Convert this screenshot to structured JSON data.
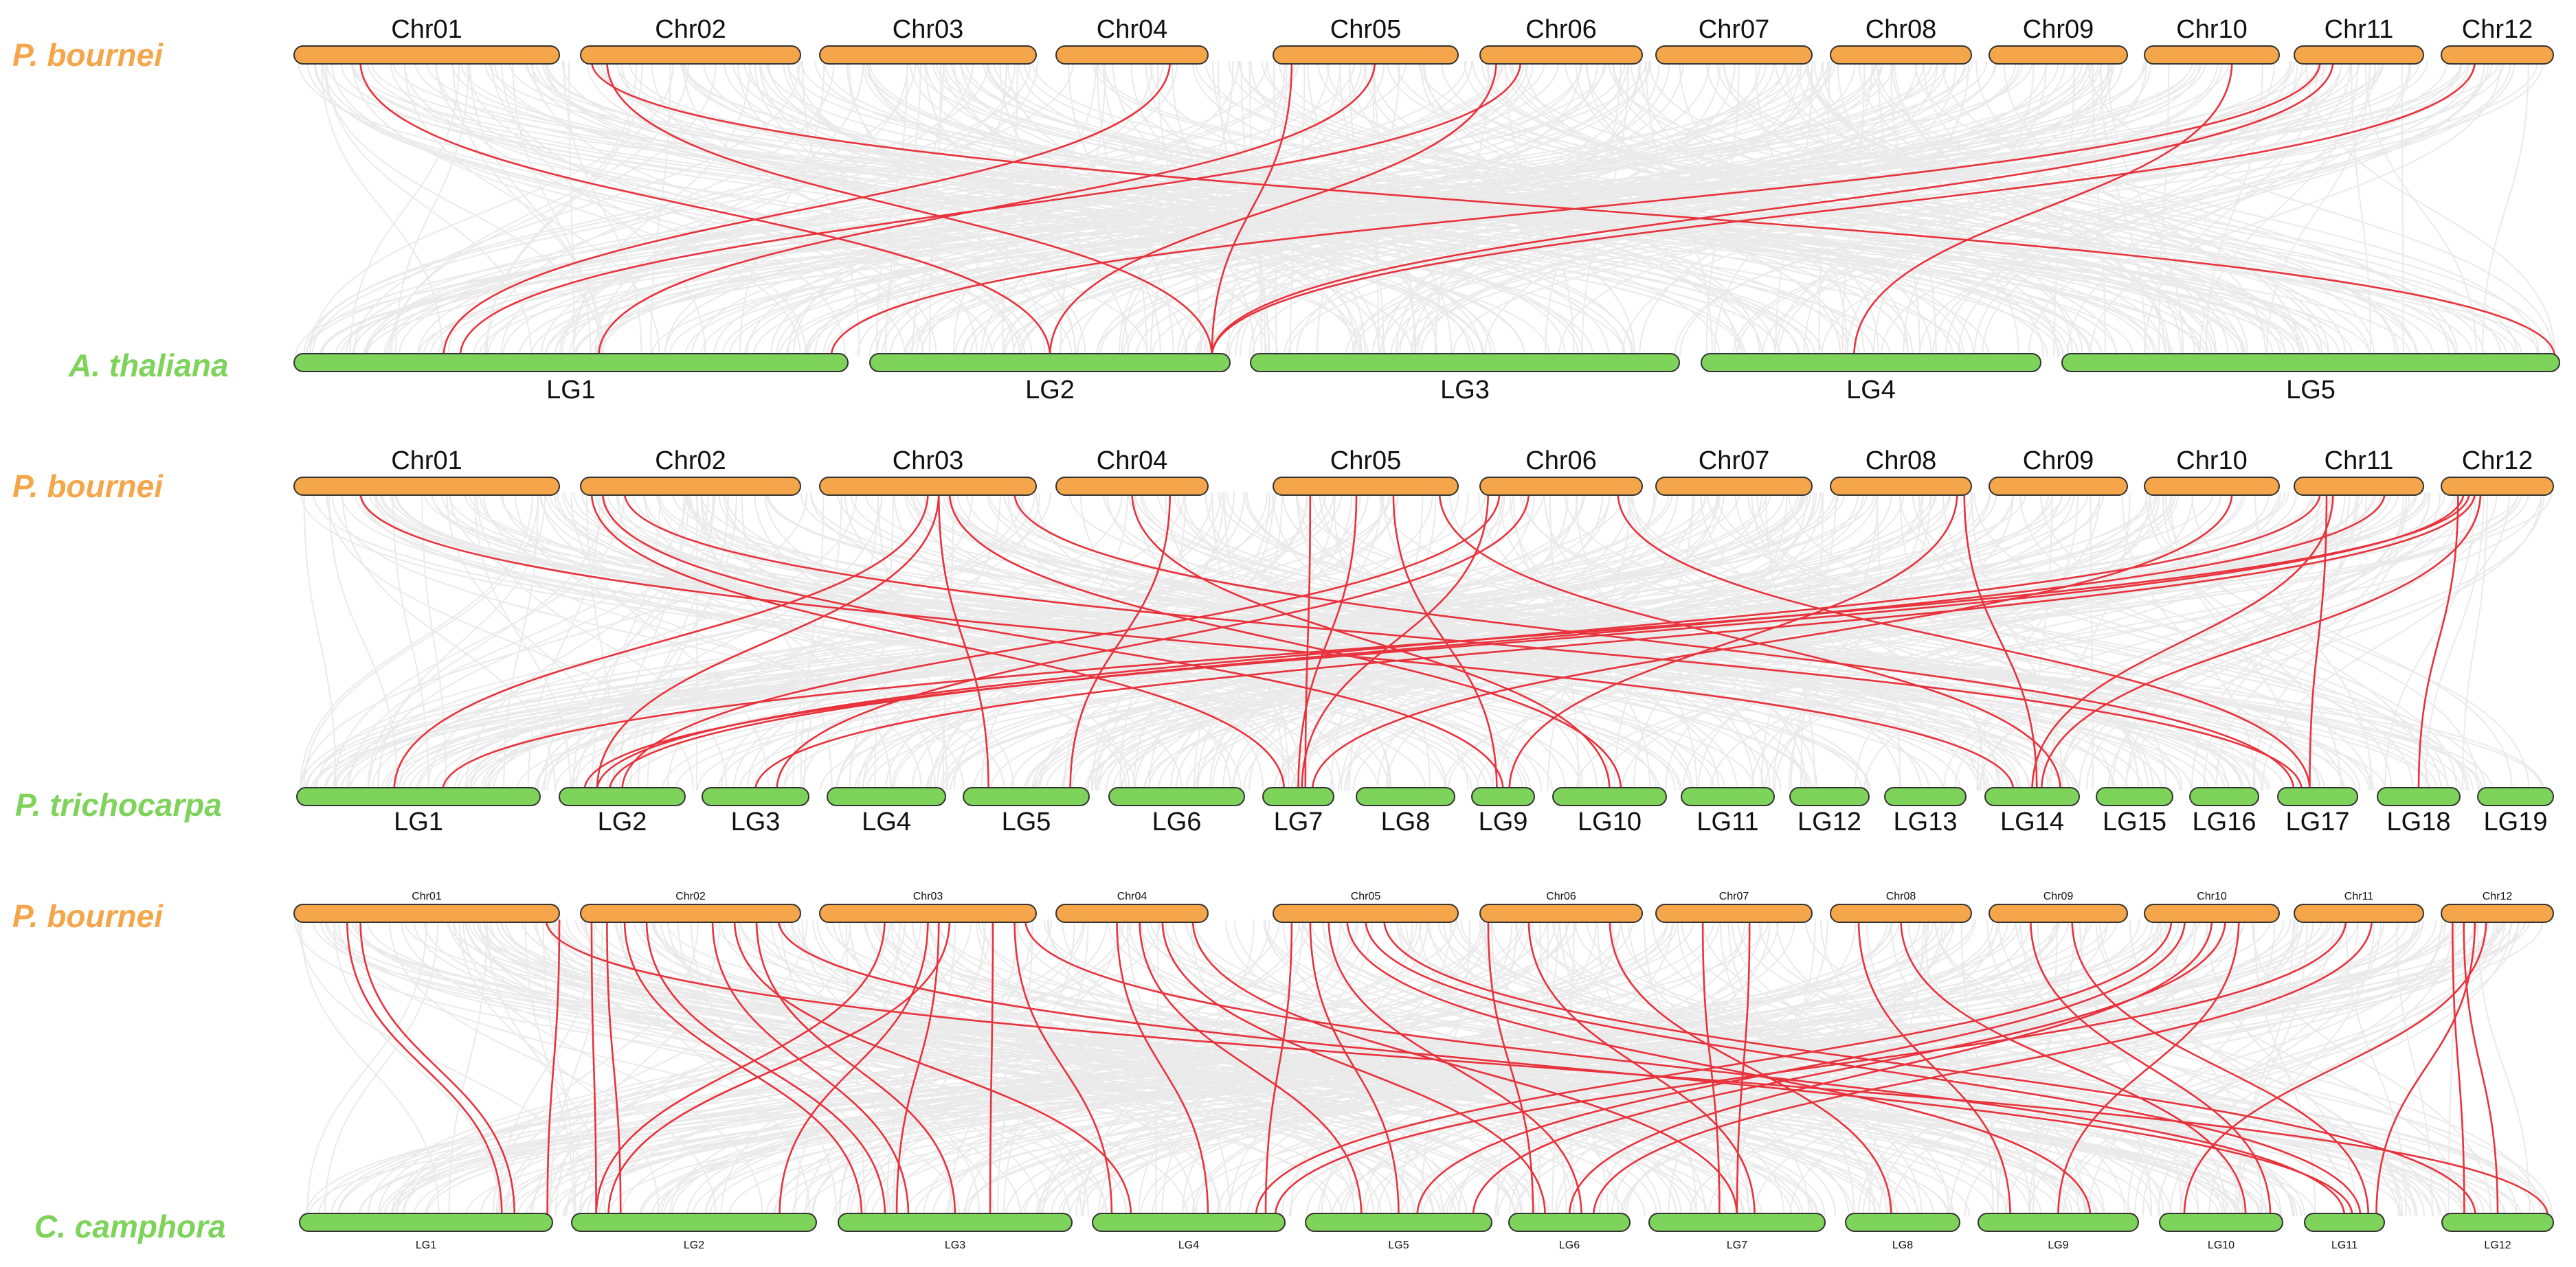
{
  "colors": {
    "top_chrom": "#f5a54a",
    "bottom_chrom": "#7ed35a",
    "top_species": "#f5a54a",
    "bottom_species": "#7ed35a",
    "background_link": "#e6e6e6",
    "synteny_link": "#e8323c",
    "outline": "#333333"
  },
  "panels": [
    {
      "top_species": "P.  bournei",
      "bottom_species": "A.  thaliana",
      "top_chroms": [
        "Chr01",
        "Chr02",
        "Chr03",
        "Chr04",
        "Chr05",
        "Chr06",
        "Chr07",
        "Chr08",
        "Chr09",
        "Chr10",
        "Chr11",
        "Chr12"
      ],
      "bottom_chroms": [
        "LG1",
        "LG2",
        "LG3",
        "LG4",
        "LG5"
      ],
      "links": [
        [
          "Chr01",
          0.25,
          "LG2",
          0.5
        ],
        [
          "Chr02",
          0.05,
          "LG5",
          0.99
        ],
        [
          "Chr02",
          0.12,
          "LG2",
          0.95
        ],
        [
          "Chr04",
          0.75,
          "LG1",
          0.27
        ],
        [
          "Chr05",
          0.1,
          "LG2",
          0.95
        ],
        [
          "Chr05",
          0.55,
          "LG1",
          0.55
        ],
        [
          "Chr06",
          0.1,
          "LG2",
          0.5
        ],
        [
          "Chr06",
          0.25,
          "LG1",
          0.3
        ],
        [
          "Chr10",
          0.65,
          "LG4",
          0.45
        ],
        [
          "Chr11",
          0.2,
          "LG1",
          0.97
        ],
        [
          "Chr11",
          0.3,
          "LG2",
          0.95
        ],
        [
          "Chr12",
          0.3,
          "LG2",
          0.95
        ]
      ]
    },
    {
      "top_species": "P.  bournei",
      "bottom_species": "P.  trichocarpa",
      "top_chroms": [
        "Chr01",
        "Chr02",
        "Chr03",
        "Chr04",
        "Chr05",
        "Chr06",
        "Chr07",
        "Chr08",
        "Chr09",
        "Chr10",
        "Chr11",
        "Chr12"
      ],
      "bottom_chroms": [
        "LG1",
        "LG2",
        "LG3",
        "LG4",
        "LG5",
        "LG6",
        "LG7",
        "LG8",
        "LG9",
        "LG10",
        "LG11",
        "LG12",
        "LG13",
        "LG14",
        "LG15",
        "LG16",
        "LG17",
        "LG18",
        "LG19"
      ],
      "links": [
        [
          "Chr01",
          0.25,
          "LG14",
          0.3
        ],
        [
          "Chr02",
          0.05,
          "LG7",
          0.3
        ],
        [
          "Chr02",
          0.1,
          "LG9",
          0.5
        ],
        [
          "Chr02",
          0.2,
          "LG17",
          0.3
        ],
        [
          "Chr03",
          0.55,
          "LG2",
          0.3
        ],
        [
          "Chr03",
          0.55,
          "LG5",
          0.2
        ],
        [
          "Chr03",
          0.5,
          "LG1",
          0.4
        ],
        [
          "Chr03",
          0.6,
          "LG10",
          0.6
        ],
        [
          "Chr03",
          0.9,
          "LG17",
          0.2
        ],
        [
          "Chr04",
          0.75,
          "LG5",
          0.85
        ],
        [
          "Chr04",
          0.5,
          "LG10",
          0.5
        ],
        [
          "Chr05",
          0.2,
          "LG7",
          0.6
        ],
        [
          "Chr05",
          0.45,
          "LG7",
          0.5
        ],
        [
          "Chr05",
          0.65,
          "LG9",
          0.4
        ],
        [
          "Chr05",
          0.9,
          "LG14",
          0.8
        ],
        [
          "Chr06",
          0.05,
          "LG7",
          0.55
        ],
        [
          "Chr06",
          0.12,
          "LG2",
          0.5
        ],
        [
          "Chr06",
          0.3,
          "LG3",
          0.7
        ],
        [
          "Chr06",
          0.85,
          "LG17",
          0.4
        ],
        [
          "Chr08",
          0.95,
          "LG14",
          0.55
        ],
        [
          "Chr08",
          0.9,
          "LG9",
          0.6
        ],
        [
          "Chr10",
          0.65,
          "LG7",
          0.7
        ],
        [
          "Chr11",
          0.2,
          "LG2",
          0.3
        ],
        [
          "Chr11",
          0.25,
          "LG17",
          0.4
        ],
        [
          "Chr11",
          0.3,
          "LG14",
          0.5
        ],
        [
          "Chr11",
          0.7,
          "LG2",
          0.4
        ],
        [
          "Chr12",
          0.2,
          "LG2",
          0.2
        ],
        [
          "Chr12",
          0.3,
          "LG3",
          0.5
        ],
        [
          "Chr12",
          0.25,
          "LG1",
          0.6
        ],
        [
          "Chr12",
          0.35,
          "LG14",
          0.6
        ],
        [
          "Chr12",
          0.15,
          "LG18",
          0.5
        ]
      ]
    },
    {
      "top_species": "P.  bournei",
      "bottom_species": "C.  camphora",
      "top_chroms": [
        "Chr01",
        "Chr02",
        "Chr03",
        "Chr04",
        "Chr05",
        "Chr06",
        "Chr07",
        "Chr08",
        "Chr09",
        "Chr10",
        "Chr11",
        "Chr12"
      ],
      "bottom_chroms": [
        "LG1",
        "LG2",
        "LG3",
        "LG4",
        "LG5",
        "LG6",
        "LG7",
        "LG8",
        "LG9",
        "LG10",
        "LG11",
        "LG12"
      ],
      "links": [
        [
          "Chr01",
          0.2,
          "LG1",
          0.8
        ],
        [
          "Chr01",
          0.25,
          "LG1",
          0.85
        ],
        [
          "Chr01",
          1.0,
          "LG1",
          0.98
        ],
        [
          "Chr01",
          0.95,
          "LG12",
          0.95
        ],
        [
          "Chr02",
          0.05,
          "LG2",
          0.1
        ],
        [
          "Chr02",
          0.12,
          "LG2",
          0.2
        ],
        [
          "Chr02",
          0.2,
          "LG3",
          0.1
        ],
        [
          "Chr02",
          0.3,
          "LG3",
          0.2
        ],
        [
          "Chr02",
          0.6,
          "LG3",
          0.3
        ],
        [
          "Chr02",
          0.7,
          "LG4",
          0.2
        ],
        [
          "Chr02",
          0.8,
          "LG3",
          0.5
        ],
        [
          "Chr02",
          0.9,
          "LG11",
          0.6
        ],
        [
          "Chr03",
          0.3,
          "LG2",
          0.1
        ],
        [
          "Chr03",
          0.5,
          "LG2",
          0.85
        ],
        [
          "Chr03",
          0.55,
          "LG3",
          0.25
        ],
        [
          "Chr03",
          0.6,
          "LG2",
          0.15
        ],
        [
          "Chr03",
          0.8,
          "LG3",
          0.65
        ],
        [
          "Chr03",
          0.9,
          "LG4",
          0.1
        ],
        [
          "Chr03",
          0.95,
          "LG11",
          0.5
        ],
        [
          "Chr04",
          0.4,
          "LG4",
          0.6
        ],
        [
          "Chr04",
          0.55,
          "LG5",
          0.3
        ],
        [
          "Chr04",
          0.7,
          "LG6",
          0.3
        ],
        [
          "Chr04",
          0.9,
          "LG7",
          0.5
        ],
        [
          "Chr05",
          0.1,
          "LG4",
          0.9
        ],
        [
          "Chr05",
          0.2,
          "LG5",
          0.5
        ],
        [
          "Chr05",
          0.3,
          "LG6",
          0.6
        ],
        [
          "Chr05",
          0.4,
          "LG9",
          0.7
        ],
        [
          "Chr05",
          0.5,
          "LG11",
          0.7
        ],
        [
          "Chr05",
          0.6,
          "LG12",
          0.3
        ],
        [
          "Chr06",
          0.05,
          "LG6",
          0.2
        ],
        [
          "Chr06",
          0.3,
          "LG7",
          0.6
        ],
        [
          "Chr06",
          0.8,
          "LG8",
          0.4
        ],
        [
          "Chr07",
          0.3,
          "LG7",
          0.4
        ],
        [
          "Chr07",
          0.6,
          "LG7",
          0.5
        ],
        [
          "Chr08",
          0.2,
          "LG9",
          0.2
        ],
        [
          "Chr08",
          0.5,
          "LG10",
          0.7
        ],
        [
          "Chr09",
          0.3,
          "LG10",
          0.9
        ],
        [
          "Chr09",
          0.6,
          "LG11",
          0.8
        ],
        [
          "Chr10",
          0.2,
          "LG4",
          0.85
        ],
        [
          "Chr10",
          0.3,
          "LG5",
          0.6
        ],
        [
          "Chr10",
          0.5,
          "LG6",
          0.5
        ],
        [
          "Chr10",
          0.6,
          "LG5",
          0.9
        ],
        [
          "Chr10",
          0.7,
          "LG9",
          0.5
        ],
        [
          "Chr11",
          0.4,
          "LG4",
          0.95
        ],
        [
          "Chr11",
          0.6,
          "LG6",
          0.7
        ],
        [
          "Chr12",
          0.1,
          "LG12",
          0.2
        ],
        [
          "Chr12",
          0.2,
          "LG12",
          0.5
        ],
        [
          "Chr12",
          0.3,
          "LG11",
          0.9
        ],
        [
          "Chr12",
          0.4,
          "LG10",
          0.2
        ]
      ]
    }
  ]
}
